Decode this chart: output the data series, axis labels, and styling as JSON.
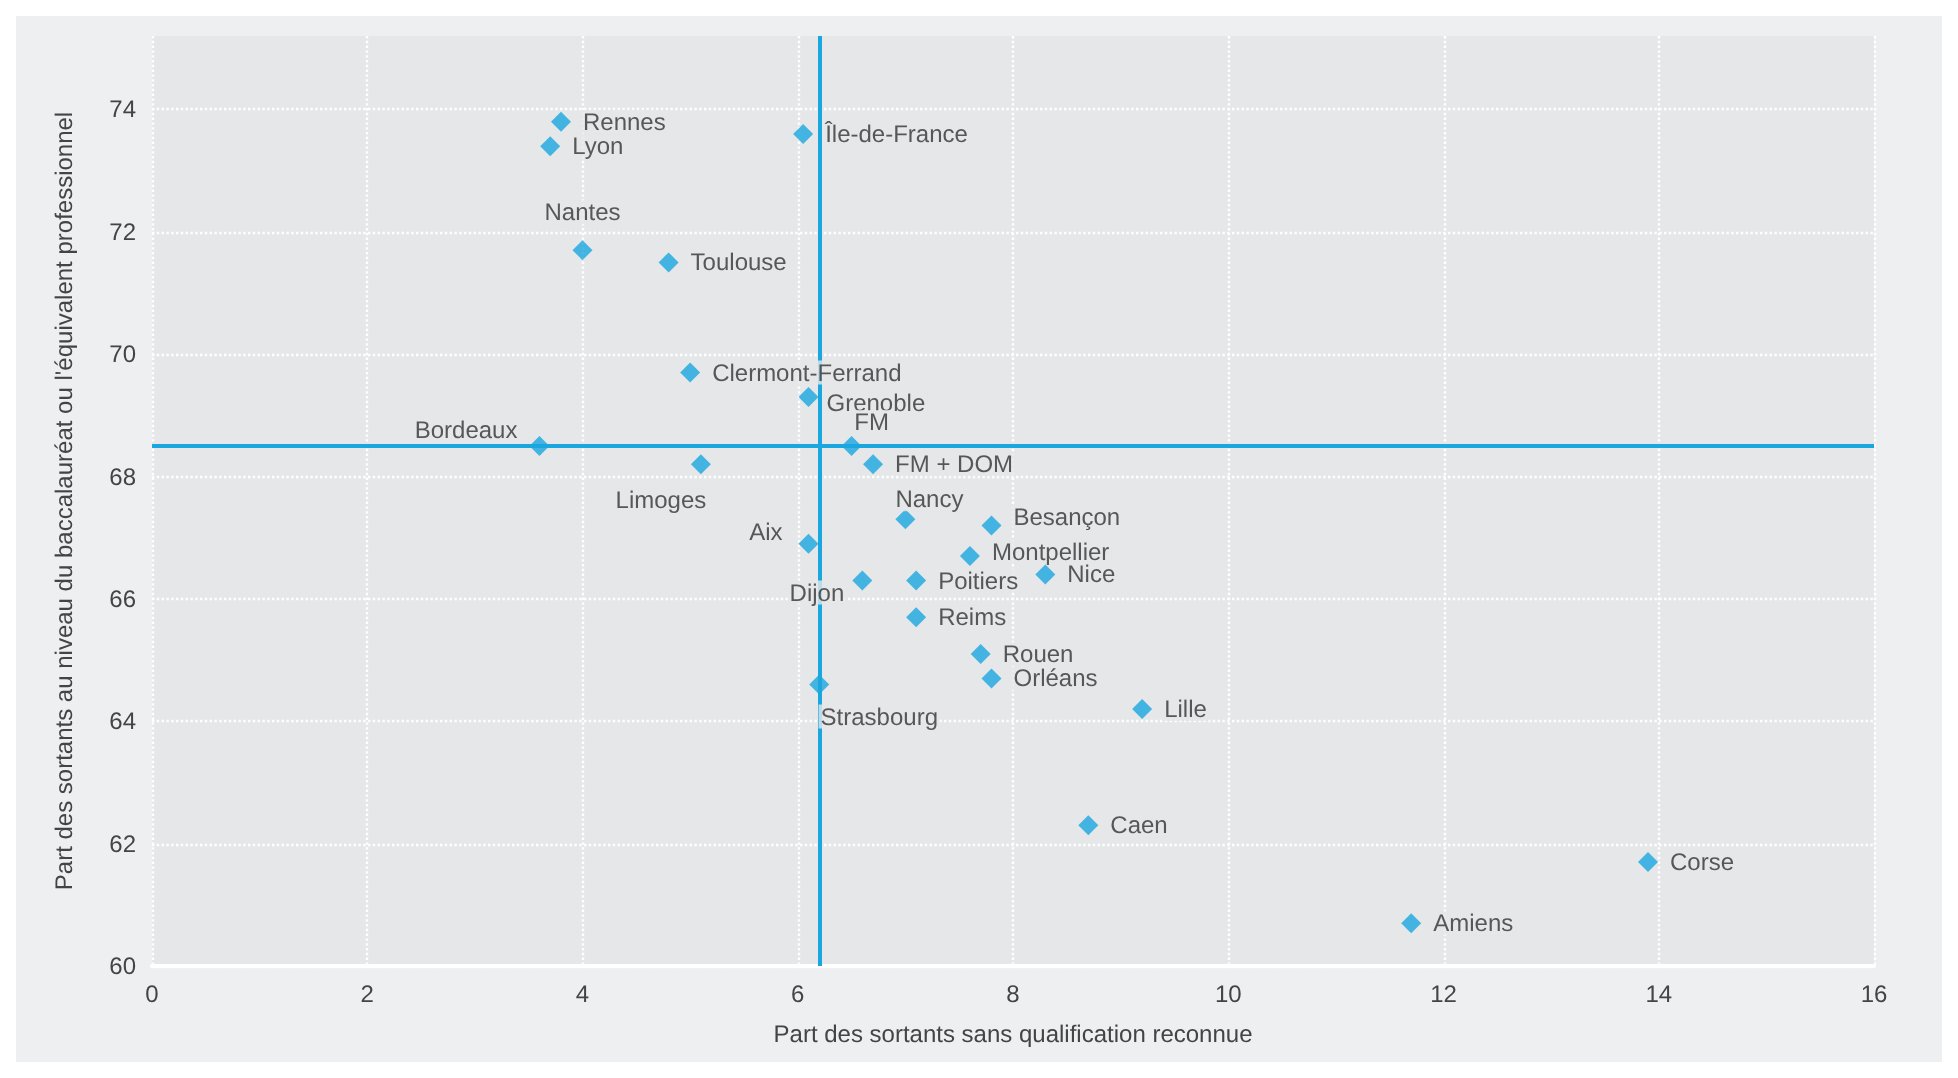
{
  "chart_data": {
    "type": "scatter",
    "xlabel": "Part des sortants sans qualification reconnue",
    "ylabel": "Part des sortants au niveau du baccalauréat ou l'équivalent professionnel",
    "x": [
      3.8,
      3.7,
      6.05,
      4.0,
      4.8,
      5.0,
      6.1,
      3.6,
      6.5,
      6.7,
      5.1,
      7.0,
      7.8,
      6.1,
      7.6,
      8.3,
      6.6,
      7.1,
      7.1,
      7.7,
      7.8,
      6.2,
      9.2,
      8.7,
      13.9,
      11.7
    ],
    "series": [
      {
        "color": "#1aa7e0",
        "values": [
          73.8,
          73.4,
          73.6,
          71.7,
          71.5,
          69.7,
          69.3,
          68.5,
          68.5,
          68.2,
          68.2,
          67.3,
          67.2,
          66.9,
          66.7,
          66.4,
          66.3,
          66.3,
          65.7,
          65.1,
          64.7,
          64.6,
          64.2,
          62.3,
          61.7,
          60.7
        ]
      }
    ],
    "annotations": [
      {
        "text": "Rennes",
        "x": 3.8,
        "y": 73.8
      },
      {
        "text": "Lyon",
        "x": 3.7,
        "y": 73.4
      },
      {
        "text": "Île-de-France",
        "x": 6.05,
        "y": 73.6
      },
      {
        "text": "Nantes",
        "x": 4.0,
        "y": 71.7
      },
      {
        "text": "Toulouse",
        "x": 4.8,
        "y": 71.5
      },
      {
        "text": "Clermont-Ferrand",
        "x": 5.0,
        "y": 69.7
      },
      {
        "text": "Grenoble",
        "x": 6.1,
        "y": 69.3
      },
      {
        "text": "Bordeaux",
        "x": 3.6,
        "y": 68.5
      },
      {
        "text": "FM",
        "x": 6.5,
        "y": 68.5
      },
      {
        "text": "FM + DOM",
        "x": 6.7,
        "y": 68.2
      },
      {
        "text": "Limoges",
        "x": 5.1,
        "y": 68.2
      },
      {
        "text": "Nancy",
        "x": 7.0,
        "y": 67.3
      },
      {
        "text": "Besançon",
        "x": 7.8,
        "y": 67.2
      },
      {
        "text": "Aix",
        "x": 6.1,
        "y": 66.9
      },
      {
        "text": "Montpellier",
        "x": 7.6,
        "y": 66.7
      },
      {
        "text": "Nice",
        "x": 8.3,
        "y": 66.4
      },
      {
        "text": "Dijon",
        "x": 6.6,
        "y": 66.3
      },
      {
        "text": "Poitiers",
        "x": 7.1,
        "y": 66.3
      },
      {
        "text": "Reims",
        "x": 7.1,
        "y": 65.7
      },
      {
        "text": "Rouen",
        "x": 7.7,
        "y": 65.1
      },
      {
        "text": "Orléans",
        "x": 7.8,
        "y": 64.7
      },
      {
        "text": "Strasbourg",
        "x": 6.2,
        "y": 64.6
      },
      {
        "text": "Lille",
        "x": 9.2,
        "y": 64.2
      },
      {
        "text": "Caen",
        "x": 8.7,
        "y": 62.3
      },
      {
        "text": "Corse",
        "x": 13.9,
        "y": 61.7
      },
      {
        "text": "Amiens",
        "x": 11.7,
        "y": 60.7
      }
    ],
    "ref_lines": [
      {
        "axis": "x",
        "value": 6.2,
        "color": "#1aa7e0"
      },
      {
        "axis": "y",
        "value": 68.5,
        "color": "#1aa7e0"
      }
    ],
    "xlim": [
      0,
      16
    ],
    "xticks": [
      0,
      2,
      4,
      6,
      8,
      10,
      12,
      14,
      16
    ],
    "ylim": [
      60,
      75.2
    ],
    "yticks": [
      60,
      62,
      64,
      66,
      68,
      70,
      72,
      74
    ],
    "grid": true,
    "marker": "diamond"
  }
}
